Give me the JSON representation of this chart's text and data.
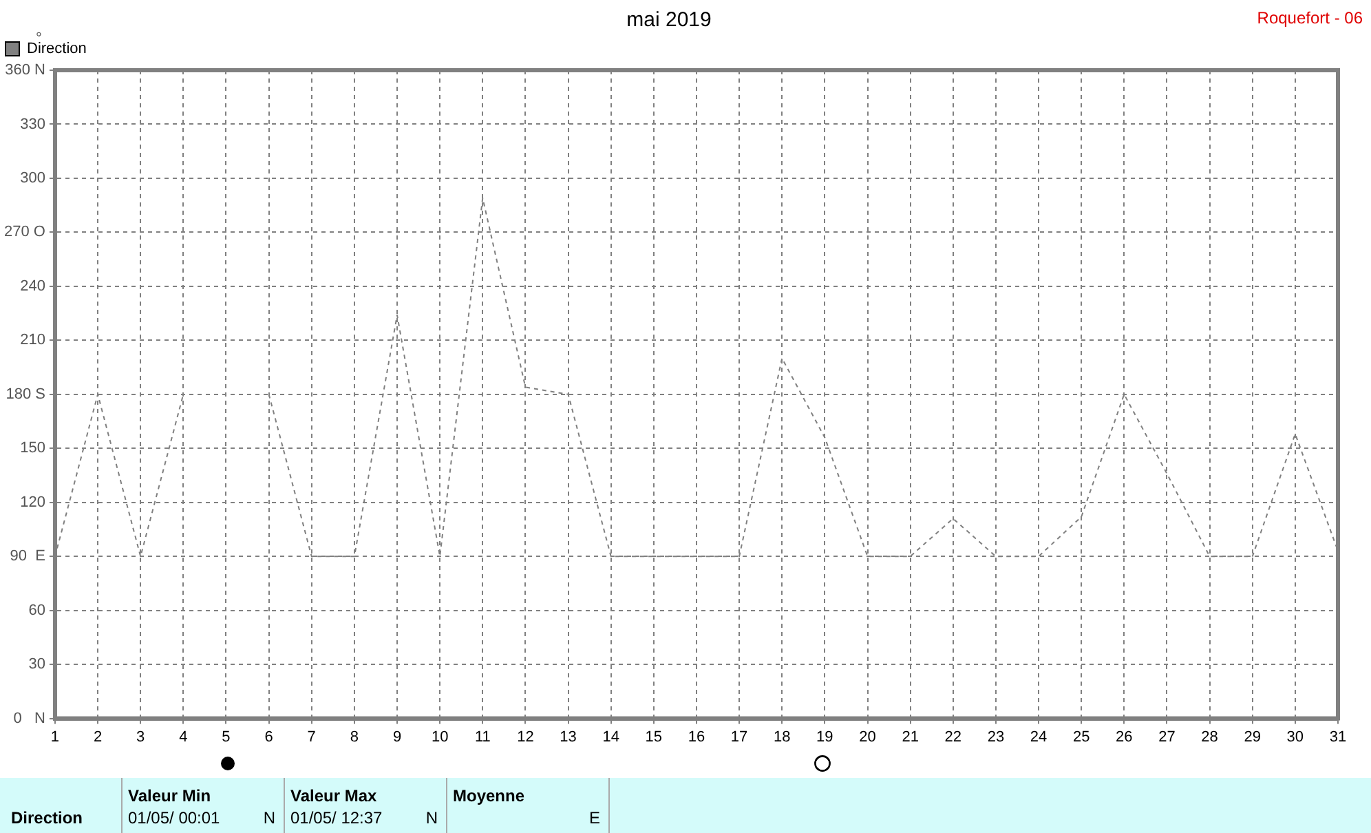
{
  "chart_data": {
    "type": "line",
    "title": "mai 2019",
    "subtitle": "Roquefort - 06",
    "ylabel": "°",
    "x": [
      1,
      2,
      3,
      4,
      5,
      6,
      7,
      8,
      9,
      10,
      11,
      12,
      13,
      14,
      15,
      16,
      17,
      18,
      19,
      20,
      21,
      22,
      23,
      24,
      25,
      26,
      27,
      28,
      29,
      30,
      31
    ],
    "series": [
      {
        "name": "Direction",
        "color": "#808080",
        "values": [
          90,
          180,
          90,
          180,
          null,
          180,
          90,
          90,
          224,
          90,
          289,
          184,
          180,
          90,
          90,
          90,
          90,
          200,
          156,
          90,
          90,
          111,
          90,
          90,
          112,
          180,
          136,
          90,
          90,
          158,
          93
        ]
      }
    ],
    "xlim": [
      1,
      31
    ],
    "xticks": [
      1,
      2,
      3,
      4,
      5,
      6,
      7,
      8,
      9,
      10,
      11,
      12,
      13,
      14,
      15,
      16,
      17,
      18,
      19,
      20,
      21,
      22,
      23,
      24,
      25,
      26,
      27,
      28,
      29,
      30,
      31
    ],
    "ylim": [
      0,
      360
    ],
    "yticks": [
      {
        "value": 0,
        "label": "0   N"
      },
      30,
      60,
      {
        "value": 90,
        "label": "90  E"
      },
      120,
      150,
      {
        "value": 180,
        "label": "180 S"
      },
      210,
      240,
      {
        "value": 270,
        "label": "270 O"
      },
      300,
      330,
      {
        "value": 360,
        "label": "360 N"
      }
    ],
    "grid": true,
    "legend": "top left",
    "marker": "none",
    "line_style": "dashed",
    "annotations": [
      "Direction",
      "Valeur Min",
      "01/05/  00:01",
      "N",
      "Valeur Max",
      "01/05/  12:37",
      "N",
      "Moyenne",
      "E"
    ]
  }
}
